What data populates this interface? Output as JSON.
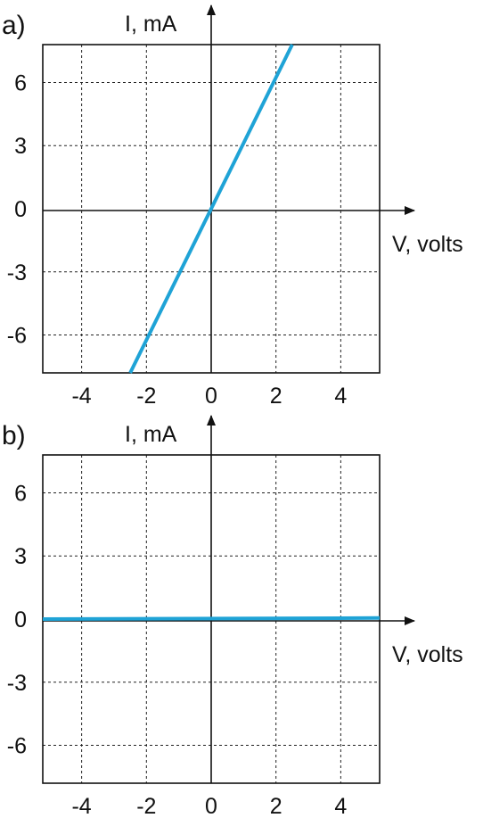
{
  "colors": {
    "line": "#1fa3d6",
    "ink": "#111111"
  },
  "chart_data": [
    {
      "type": "line",
      "panel_label": "a)",
      "xlabel": "V, volts",
      "ylabel": "I, mA",
      "xlim": [
        -5.2,
        5.2
      ],
      "ylim": [
        -7.8,
        7.8
      ],
      "xticks": [
        -4,
        -2,
        0,
        2,
        4
      ],
      "yticks": [
        -6,
        -3,
        0,
        3,
        6
      ],
      "xtick_labels": [
        "-4",
        "-2",
        "0",
        "2",
        "4"
      ],
      "ytick_labels": [
        "-6",
        "-3",
        "0",
        "3",
        "6"
      ],
      "grid": true,
      "series": [
        {
          "x": [
            -2.5,
            2.5
          ],
          "y": [
            -7.8,
            7.8
          ]
        }
      ]
    },
    {
      "type": "line",
      "panel_label": "b)",
      "xlabel": "V, volts",
      "ylabel": "I, mA",
      "xlim": [
        -5.2,
        5.2
      ],
      "ylim": [
        -7.8,
        7.8
      ],
      "xticks": [
        -4,
        -2,
        0,
        2,
        4
      ],
      "yticks": [
        -6,
        -3,
        0,
        3,
        6
      ],
      "xtick_labels": [
        "-4",
        "-2",
        "0",
        "2",
        "4"
      ],
      "ytick_labels": [
        "-6",
        "-3",
        "0",
        "3",
        "6"
      ],
      "grid": true,
      "series": [
        {
          "x": [
            -5.2,
            5.2
          ],
          "y": [
            0,
            0.05
          ]
        }
      ]
    }
  ]
}
